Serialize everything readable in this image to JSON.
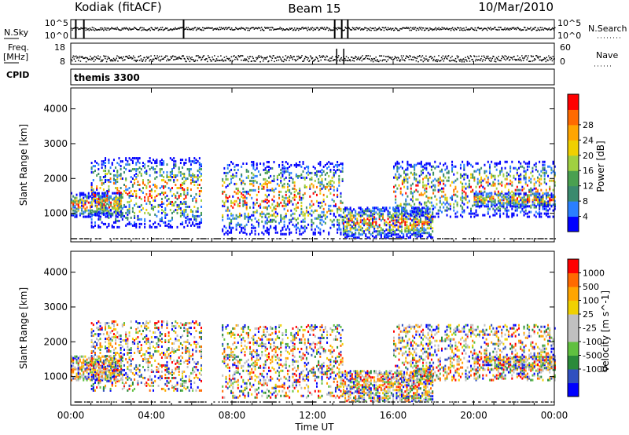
{
  "header": {
    "station": "Kodiak (fitACF)",
    "beam": "Beam 15",
    "date": "10/Mar/2010"
  },
  "noise_panel": {
    "left_label": "N.Sky",
    "right_label": "N.Search",
    "left_ticks": [
      "10^5",
      "10^0"
    ],
    "right_ticks": [
      "10^5",
      "10^0"
    ]
  },
  "freq_panel": {
    "left_label_line1": "Freq.",
    "left_label_line2": "[MHz]",
    "right_label": "Nave",
    "left_ticks": [
      "18",
      "8"
    ],
    "right_ticks": [
      "60",
      "0"
    ]
  },
  "cpid": {
    "label": "CPID",
    "value": "themis 3300"
  },
  "x_axis": {
    "label": "Time UT",
    "ticks": [
      "00:00",
      "04:00",
      "08:00",
      "12:00",
      "16:00",
      "20:00",
      "00:00"
    ]
  },
  "power_panel": {
    "ylabel": "Slant Range [km]",
    "yticks": [
      "1000",
      "2000",
      "3000",
      "4000"
    ],
    "colorbar_label": "Power [dB]",
    "colorbar_ticks": [
      "4",
      "8",
      "12",
      "16",
      "20",
      "24",
      "28"
    ]
  },
  "velocity_panel": {
    "ylabel": "Slant Range [km]",
    "yticks": [
      "1000",
      "2000",
      "3000",
      "4000"
    ],
    "colorbar_label": "Velocity [m s^-1]",
    "colorbar_ticks": [
      "1000",
      "500",
      "100",
      "25",
      "-25",
      "-100",
      "-500",
      "-1000"
    ]
  },
  "chart_data": {
    "type": "heatmap",
    "x_range_hours": [
      0,
      24
    ],
    "y_range_km": [
      180,
      4600
    ],
    "power_colors": [
      "#0000ff",
      "#2a7fff",
      "#3a8a6e",
      "#4aa050",
      "#a0d040",
      "#f0d000",
      "#ffa500",
      "#ff6a00",
      "#ff0000"
    ],
    "velocity_colors": [
      "#ff0000",
      "#ff6a00",
      "#ffa500",
      "#f0d000",
      "#c0c0c0",
      "#c0c0c0",
      "#60c040",
      "#2a8a3a",
      "#3050c0",
      "#0000ff"
    ],
    "echo_regions": [
      {
        "t": [
          0.0,
          2.5
        ],
        "r": [
          900,
          1600
        ],
        "density": "high"
      },
      {
        "t": [
          1.0,
          6.5
        ],
        "r": [
          600,
          2600
        ],
        "density": "medium"
      },
      {
        "t": [
          7.5,
          13.5
        ],
        "r": [
          400,
          2500
        ],
        "density": "medium"
      },
      {
        "t": [
          13.5,
          18.0
        ],
        "r": [
          300,
          1200
        ],
        "density": "high"
      },
      {
        "t": [
          16.0,
          24.0
        ],
        "r": [
          900,
          2500
        ],
        "density": "medium"
      },
      {
        "t": [
          20.0,
          24.0
        ],
        "r": [
          1200,
          1600
        ],
        "density": "high"
      }
    ]
  }
}
